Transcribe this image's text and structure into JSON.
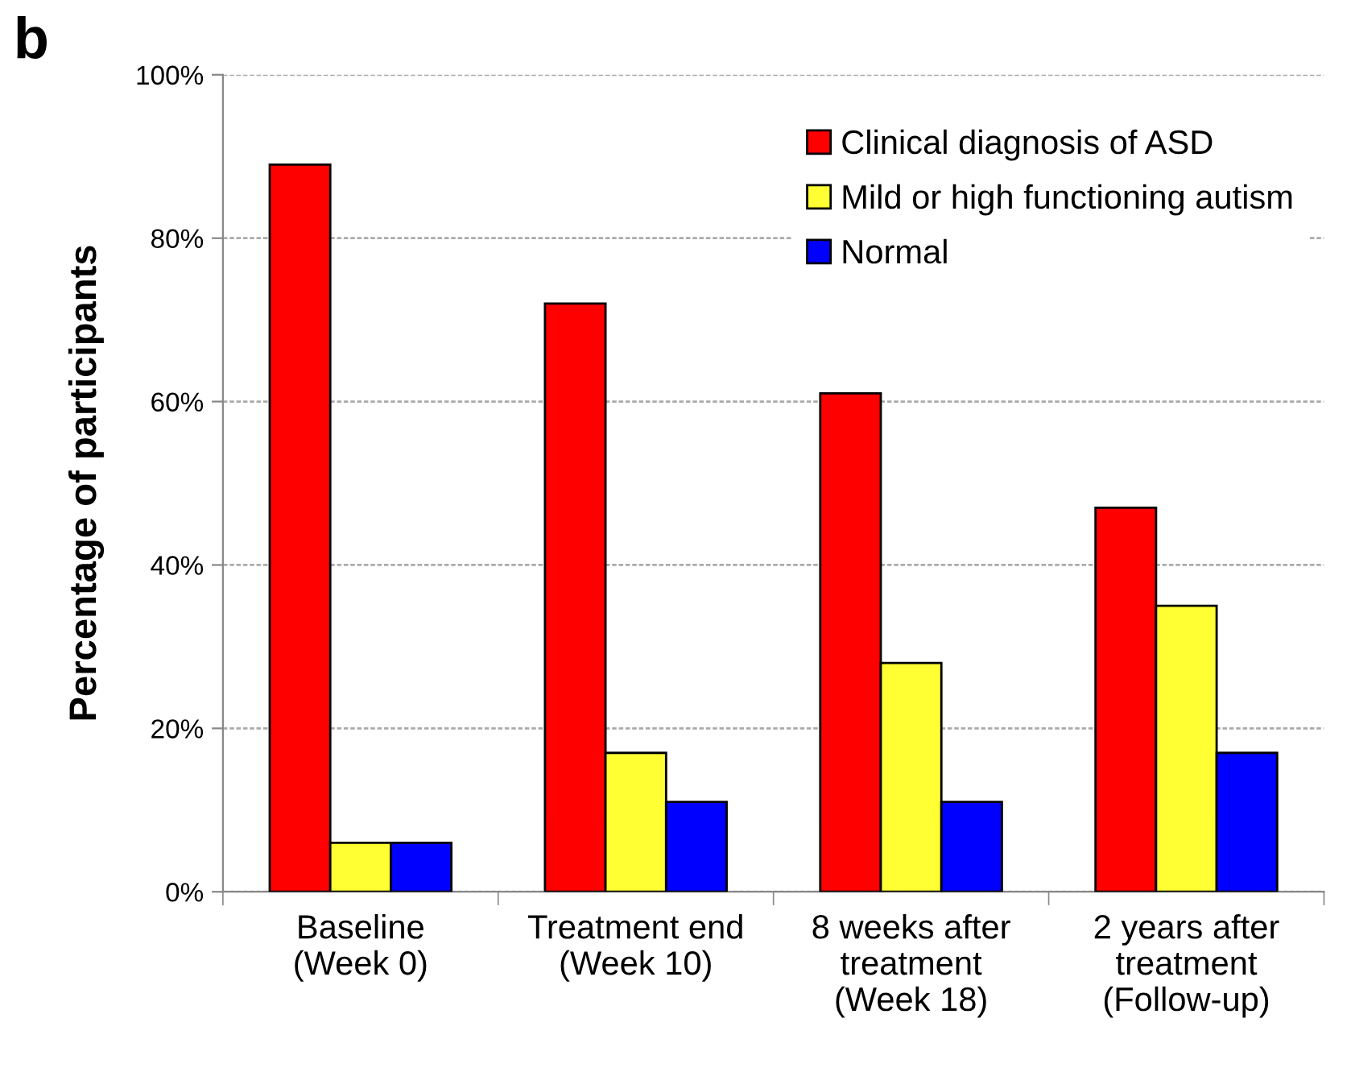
{
  "chart_data": {
    "type": "bar",
    "ylabel": "Percentage of participants",
    "annotations": [
      "b"
    ],
    "categories": [
      "Baseline\n(Week 0)",
      "Treatment end\n(Week 10)",
      "8 weeks after\ntreatment\n(Week 18)",
      "2 years after\ntreatment\n(Follow-up)"
    ],
    "series": [
      {
        "name": "Clinical diagnosis of ASD",
        "color": "#ff0000",
        "values": [
          89,
          72,
          61,
          47
        ]
      },
      {
        "name": "Mild or high functioning autism",
        "color": "#ffff33",
        "values": [
          6,
          17,
          28,
          35
        ]
      },
      {
        "name": "Normal",
        "color": "#0000ff",
        "values": [
          6,
          11,
          11,
          17
        ]
      }
    ],
    "ylim": [
      0,
      100
    ],
    "yticks": [
      {
        "value": 0,
        "label": "0%"
      },
      {
        "value": 20,
        "label": "20%"
      },
      {
        "value": 40,
        "label": "40%"
      },
      {
        "value": 60,
        "label": "60%"
      },
      {
        "value": 80,
        "label": "80%"
      },
      {
        "value": 100,
        "label": "100%"
      }
    ],
    "grid": "y",
    "legend": "top right"
  }
}
